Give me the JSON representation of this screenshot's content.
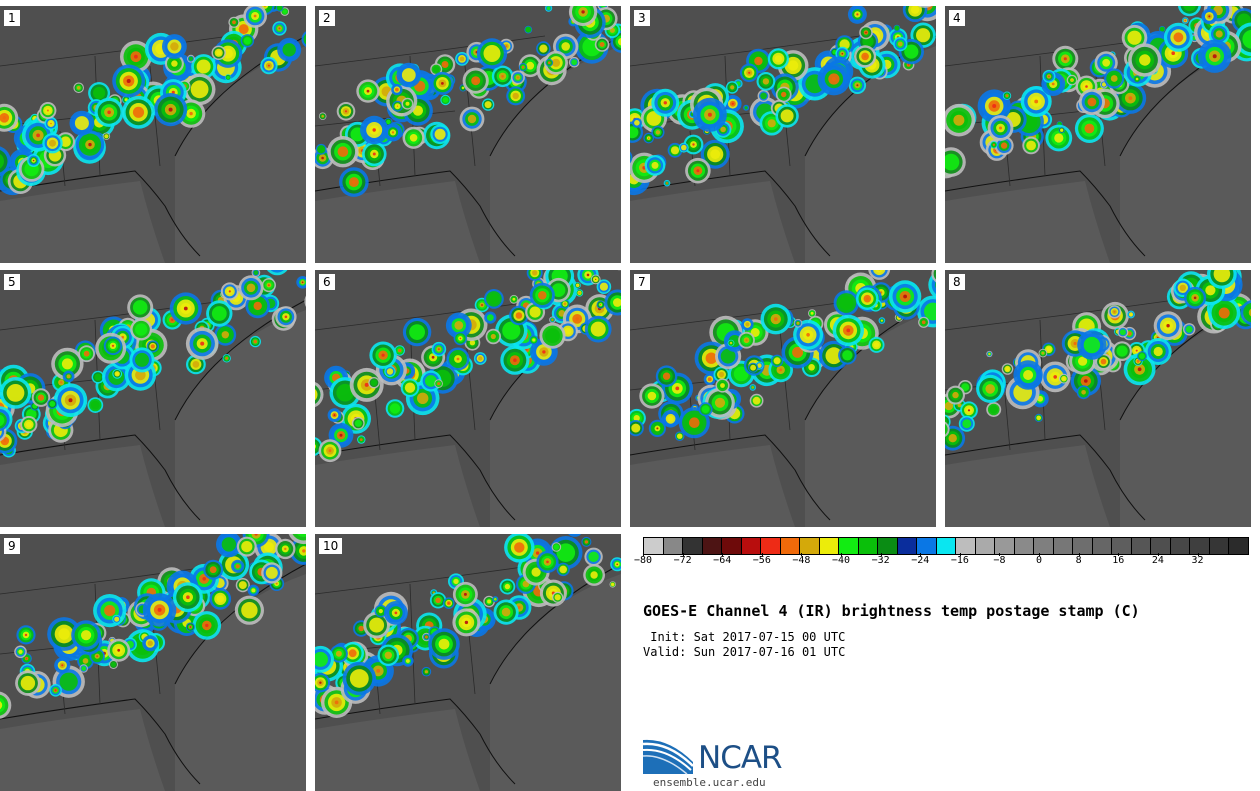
{
  "panels": [
    {
      "label": "1"
    },
    {
      "label": "2"
    },
    {
      "label": "3"
    },
    {
      "label": "4"
    },
    {
      "label": "5"
    },
    {
      "label": "6"
    },
    {
      "label": "7"
    },
    {
      "label": "8"
    },
    {
      "label": "9"
    },
    {
      "label": "10"
    }
  ],
  "colorbar": {
    "colors": [
      "#cccccc",
      "#888888",
      "#333333",
      "#4d1414",
      "#6e0a0a",
      "#b80d0d",
      "#ee2b16",
      "#f06a0a",
      "#d4a90a",
      "#ecec0a",
      "#12ec12",
      "#0abf0a",
      "#0a8c14",
      "#0a2d9c",
      "#0a77e5",
      "#0ae6f0",
      "#bdbdbd",
      "#aaaaaa",
      "#999999",
      "#8a8a8a",
      "#7f7f7f",
      "#777777",
      "#6e6e6e",
      "#666666",
      "#5e5e5e",
      "#565656",
      "#4f4f4f",
      "#474747",
      "#3f3f3f",
      "#363636",
      "#2b2b2b"
    ],
    "tick_labels": [
      "−80",
      "−72",
      "−64",
      "−56",
      "−48",
      "−40",
      "−32",
      "−24",
      "−16",
      "−8",
      "0",
      "8",
      "16",
      "24",
      "32"
    ],
    "tick_values": [
      -80,
      -72,
      -64,
      -56,
      -48,
      -40,
      -32,
      -24,
      -16,
      -8,
      0,
      8,
      16,
      24,
      32
    ],
    "min": -80,
    "max": 42
  },
  "title": "GOES-E Channel 4 (IR) brightness temp postage stamp (C)",
  "init": " Init: Sat 2017-07-15 00 UTC",
  "valid": "Valid: Sun 2017-07-16 01 UTC",
  "logo": {
    "text": "NCAR",
    "url": "ensemble.ucar.edu"
  }
}
